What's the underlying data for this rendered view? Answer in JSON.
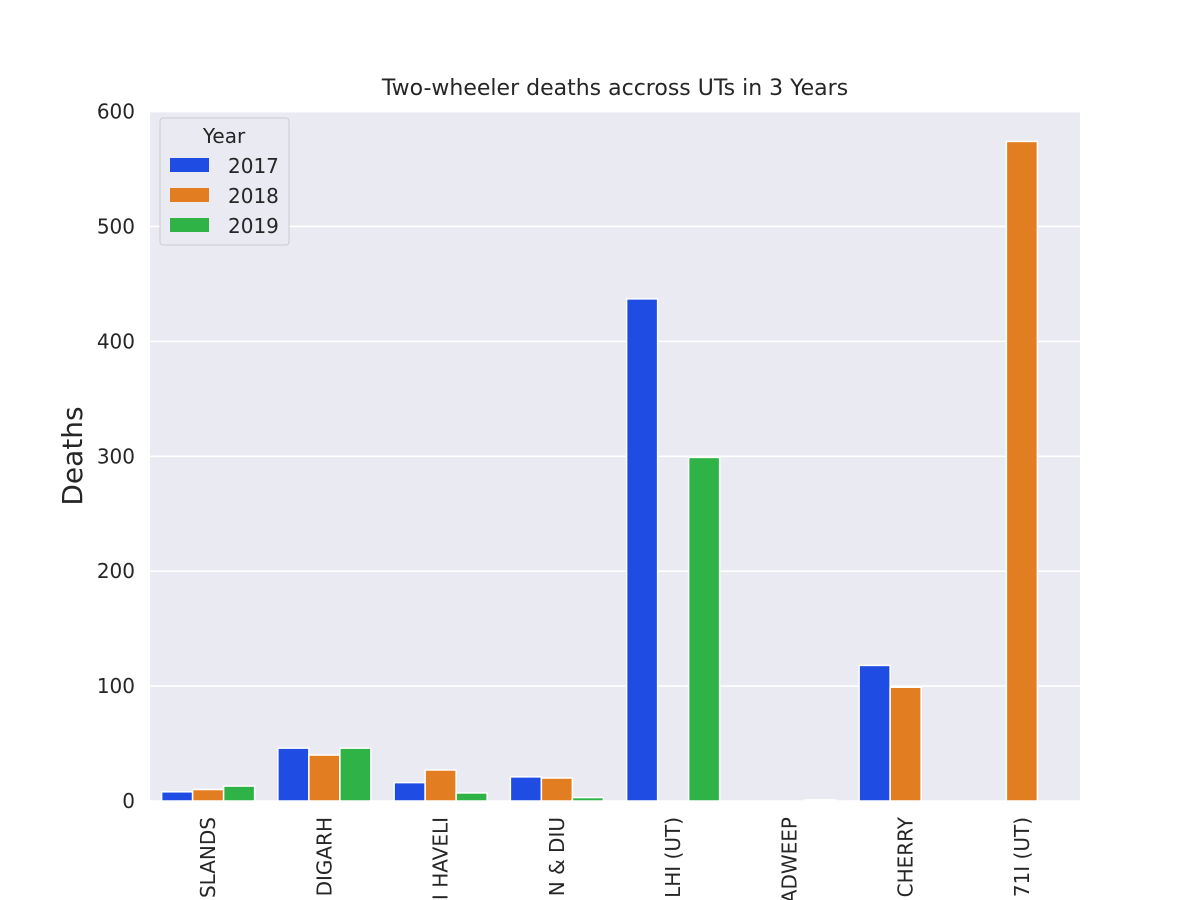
{
  "chart_data": {
    "type": "bar",
    "title": "Two-wheeler deaths accross  UTs in 3 Years",
    "xlabel": "",
    "ylabel": "Deaths",
    "ylim": [
      0,
      600
    ],
    "yticks": [
      0,
      100,
      200,
      300,
      400,
      500,
      600
    ],
    "categories": [
      "SLANDS",
      "DIGARH",
      "I HAVELI",
      "N & DIU",
      "LHI (UT)",
      "ADWEEP",
      "CHERRY",
      "71I (UT)"
    ],
    "legend": {
      "title": "Year",
      "position": "top-left"
    },
    "grid": true,
    "series": [
      {
        "name": "2017",
        "color": "#1f4de4",
        "values": [
          8,
          46,
          16,
          21,
          437,
          0,
          118,
          0
        ]
      },
      {
        "name": "2018",
        "color": "#e37d21",
        "values": [
          10,
          40,
          27,
          20,
          0,
          0,
          99,
          574
        ]
      },
      {
        "name": "2019",
        "color": "#2fb246",
        "values": [
          13,
          46,
          7,
          3,
          299,
          1,
          0,
          0
        ]
      }
    ],
    "colors": {
      "background": "#eaeaf2",
      "grid": "#ffffff",
      "text": "#262626"
    }
  }
}
